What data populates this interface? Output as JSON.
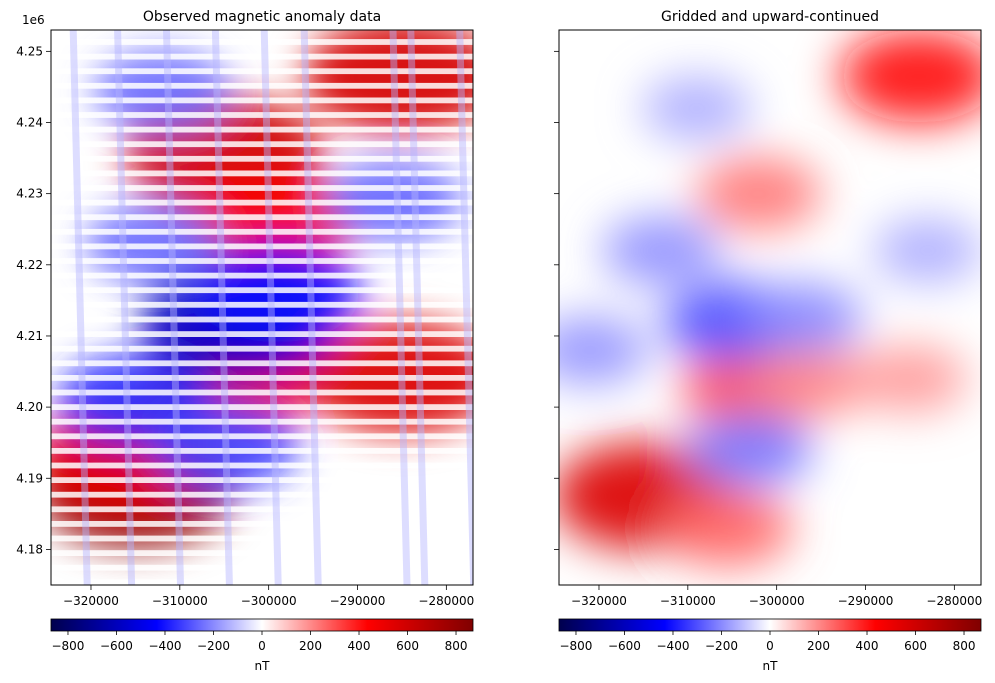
{
  "chart_data": [
    {
      "type": "scatter",
      "title": "Observed magnetic anomaly data",
      "xlabel": "",
      "ylabel": "",
      "y_offset_label": "1e6",
      "xlim": [
        -324500,
        -277000
      ],
      "ylim": [
        4175000,
        4253000
      ],
      "x_ticks": [
        -320000,
        -310000,
        -300000,
        -290000,
        -280000
      ],
      "x_tick_labels": [
        "−320000",
        "−310000",
        "−300000",
        "−290000",
        "−280000"
      ],
      "y_ticks": [
        4180000,
        4190000,
        4200000,
        4210000,
        4220000,
        4230000,
        4240000,
        4250000
      ],
      "y_tick_labels": [
        "4.18",
        "4.19",
        "4.20",
        "4.21",
        "4.22",
        "4.23",
        "4.24",
        "4.25"
      ],
      "colormap": "seismic",
      "color_range": [
        -870,
        870
      ],
      "survey_lines": {
        "flight_line_count": 38,
        "tie_line_x": [
          -322000,
          -317000,
          -311500,
          -306000,
          -300500,
          -296000,
          -286000,
          -284000,
          -278500
        ]
      },
      "anomalies": [
        {
          "x": -315000,
          "y": 4188500,
          "value": 820
        },
        {
          "x": -305000,
          "y": 4235500,
          "value": 600
        },
        {
          "x": -285000,
          "y": 4246500,
          "value": 580
        },
        {
          "x": -300000,
          "y": 4226000,
          "value": 460
        },
        {
          "x": -304000,
          "y": 4204000,
          "value": 480
        },
        {
          "x": -285000,
          "y": 4204200,
          "value": 560
        },
        {
          "x": -316000,
          "y": 4193000,
          "value": 520
        },
        {
          "x": -303500,
          "y": 4212000,
          "value": -580
        },
        {
          "x": -299000,
          "y": 4216000,
          "value": -420
        },
        {
          "x": -315000,
          "y": 4201000,
          "value": -360
        },
        {
          "x": -305000,
          "y": 4194500,
          "value": -320
        },
        {
          "x": -312000,
          "y": 4244500,
          "value": -250
        },
        {
          "x": -286000,
          "y": 4229000,
          "value": -260
        },
        {
          "x": -313000,
          "y": 4223000,
          "value": -250
        }
      ],
      "colorbar": {
        "label": "nT",
        "ticks": [
          -800,
          -600,
          -400,
          -200,
          0,
          200,
          400,
          600,
          800
        ],
        "tick_labels": [
          "−800",
          "−600",
          "−400",
          "−200",
          "0",
          "200",
          "400",
          "600",
          "800"
        ],
        "range": [
          -870,
          870
        ]
      }
    },
    {
      "type": "heatmap",
      "title": "Gridded and upward-continued",
      "xlabel": "",
      "ylabel": "",
      "xlim": [
        -324500,
        -277000
      ],
      "ylim": [
        4175000,
        4253000
      ],
      "x_ticks": [
        -320000,
        -310000,
        -300000,
        -290000,
        -280000
      ],
      "x_tick_labels": [
        "−320000",
        "−310000",
        "−300000",
        "−290000",
        "−280000"
      ],
      "y_ticks": [
        4180000,
        4190000,
        4200000,
        4210000,
        4220000,
        4230000,
        4240000,
        4250000
      ],
      "y_tick_labels_shown": false,
      "colormap": "seismic",
      "color_range": [
        -870,
        870
      ],
      "anomalies": [
        {
          "x": -315000,
          "y": 4187500,
          "value": 560
        },
        {
          "x": -305500,
          "y": 4183000,
          "value": 260
        },
        {
          "x": -284000,
          "y": 4246500,
          "value": 420
        },
        {
          "x": -302000,
          "y": 4230000,
          "value": 230
        },
        {
          "x": -303000,
          "y": 4202500,
          "value": 300
        },
        {
          "x": -296000,
          "y": 4203500,
          "value": 200
        },
        {
          "x": -285000,
          "y": 4204000,
          "value": 170
        },
        {
          "x": -305000,
          "y": 4212000,
          "value": -300
        },
        {
          "x": -297000,
          "y": 4212500,
          "value": -200
        },
        {
          "x": -313000,
          "y": 4222000,
          "value": -190
        },
        {
          "x": -309000,
          "y": 4242000,
          "value": -140
        },
        {
          "x": -303000,
          "y": 4194000,
          "value": -230
        },
        {
          "x": -321000,
          "y": 4208000,
          "value": -180
        },
        {
          "x": -283000,
          "y": 4222000,
          "value": -140
        }
      ],
      "colorbar": {
        "label": "nT",
        "ticks": [
          -800,
          -600,
          -400,
          -200,
          0,
          200,
          400,
          600,
          800
        ],
        "tick_labels": [
          "−800",
          "−600",
          "−400",
          "−200",
          "0",
          "200",
          "400",
          "600",
          "800"
        ],
        "range": [
          -870,
          870
        ]
      }
    }
  ]
}
